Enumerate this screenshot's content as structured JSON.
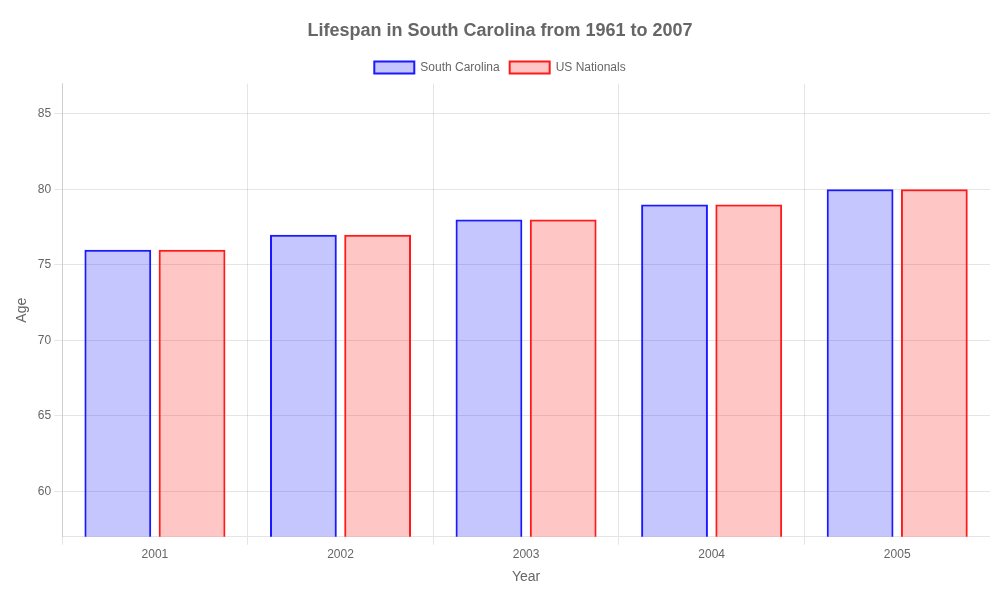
{
  "chart_data": {
    "type": "bar",
    "title": "Lifespan in South Carolina from 1961 to 2007",
    "xlabel": "Year",
    "ylabel": "Age",
    "categories": [
      "2001",
      "2002",
      "2003",
      "2004",
      "2005"
    ],
    "series": [
      {
        "name": "South Carolina",
        "color": "#1a1aff",
        "values": [
          76,
          77,
          78,
          79,
          80
        ]
      },
      {
        "name": "US Nationals",
        "color": "#ff1a1a",
        "values": [
          76,
          77,
          78,
          79,
          80
        ]
      }
    ],
    "ylim": [
      57,
      87
    ],
    "yticks": [
      60,
      65,
      70,
      75,
      80,
      85
    ],
    "grid": true,
    "legend": "top"
  }
}
